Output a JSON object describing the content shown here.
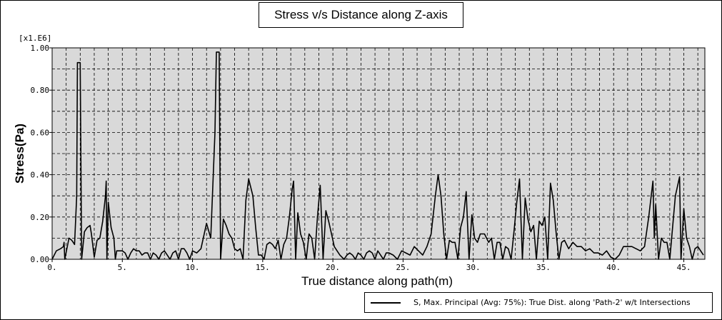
{
  "chart_data": {
    "type": "line",
    "title": "Stress v/s Distance along Z-axis",
    "xlabel": "True distance along path(m)",
    "ylabel": "Stress(Pa)",
    "yscale_label": "[x1.E6]",
    "xlim": [
      0,
      46.5
    ],
    "ylim": [
      0,
      1.0
    ],
    "x_ticks": [
      0,
      5,
      10,
      15,
      20,
      25,
      30,
      35,
      40,
      45
    ],
    "x_tick_labels": [
      "0.",
      "5.",
      "10.",
      "15.",
      "20.",
      "25.",
      "30.",
      "35.",
      "40.",
      "45."
    ],
    "y_ticks": [
      0,
      0.2,
      0.4,
      0.6,
      0.8,
      1.0
    ],
    "y_tick_labels": [
      "0.00",
      "0.20",
      "0.40",
      "0.60",
      "0.80",
      "1.00"
    ],
    "grid": true,
    "legend_position": "bottom-right",
    "background_color": "#d9d9d9",
    "series": [
      {
        "name": "S, Max. Principal (Avg: 75%): True Dist. along 'Path-2' w/t Intersections",
        "color": "#000000",
        "x": [
          0.0,
          0.3,
          0.6,
          0.8,
          0.85,
          0.9,
          1.2,
          1.4,
          1.5,
          1.6,
          1.75,
          1.8,
          1.9,
          2.0,
          2.1,
          2.3,
          2.5,
          2.7,
          2.8,
          3.0,
          3.2,
          3.4,
          3.6,
          3.8,
          3.85,
          3.9,
          4.0,
          4.2,
          4.4,
          4.5,
          4.6,
          5.0,
          5.2,
          5.4,
          5.6,
          5.8,
          6.0,
          6.2,
          6.4,
          6.6,
          6.8,
          7.0,
          7.2,
          7.4,
          7.6,
          7.8,
          8.0,
          8.2,
          8.4,
          8.6,
          8.8,
          9.0,
          9.2,
          9.4,
          9.6,
          9.8,
          10.0,
          10.3,
          10.6,
          11.0,
          11.3,
          11.6,
          11.7,
          11.8,
          11.9,
          12.0,
          12.2,
          12.4,
          12.6,
          12.8,
          13.0,
          13.2,
          13.4,
          13.6,
          13.8,
          14.0,
          14.3,
          14.5,
          14.7,
          14.9,
          15.1,
          15.3,
          15.5,
          15.7,
          15.9,
          16.1,
          16.3,
          16.5,
          16.7,
          16.9,
          17.1,
          17.2,
          17.35,
          17.5,
          17.7,
          17.9,
          18.1,
          18.3,
          18.5,
          18.7,
          18.9,
          19.1,
          19.3,
          19.5,
          19.7,
          19.9,
          20.1,
          20.3,
          20.5,
          20.8,
          21.0,
          21.2,
          21.4,
          21.6,
          21.8,
          22.0,
          22.2,
          22.4,
          22.6,
          22.8,
          23.0,
          23.2,
          23.4,
          23.6,
          23.8,
          24.0,
          24.3,
          24.6,
          24.9,
          25.2,
          25.5,
          25.8,
          26.1,
          26.4,
          26.7,
          27.0,
          27.3,
          27.5,
          27.7,
          27.9,
          28.1,
          28.3,
          28.5,
          28.7,
          28.9,
          29.1,
          29.3,
          29.5,
          29.7,
          29.9,
          30.1,
          30.3,
          30.5,
          30.8,
          31.1,
          31.3,
          31.5,
          31.7,
          31.9,
          32.1,
          32.3,
          32.5,
          32.7,
          32.9,
          33.1,
          33.3,
          33.5,
          33.7,
          33.9,
          34.1,
          34.3,
          34.5,
          34.7,
          34.9,
          35.1,
          35.3,
          35.5,
          35.7,
          35.9,
          36.1,
          36.3,
          36.5,
          36.8,
          37.1,
          37.4,
          37.7,
          38.0,
          38.3,
          38.6,
          38.9,
          39.2,
          39.5,
          39.8,
          40.1,
          40.4,
          40.7,
          41.0,
          41.3,
          41.6,
          41.9,
          42.2,
          42.5,
          42.8,
          42.9,
          43.0,
          43.2,
          43.4,
          43.6,
          43.8,
          44.0,
          44.2,
          44.4,
          44.7,
          44.8,
          45.0,
          45.2,
          45.4,
          45.6,
          45.8,
          46.0,
          46.2,
          46.4
        ],
        "values": [
          0.0,
          0.04,
          0.05,
          0.06,
          0.08,
          0.0,
          0.1,
          0.09,
          0.08,
          0.07,
          0.3,
          0.93,
          0.93,
          0.93,
          0.0,
          0.13,
          0.15,
          0.16,
          0.12,
          0.01,
          0.09,
          0.1,
          0.18,
          0.3,
          0.37,
          0.0,
          0.27,
          0.15,
          0.1,
          0.0,
          0.04,
          0.04,
          0.03,
          0.0,
          0.03,
          0.05,
          0.04,
          0.04,
          0.02,
          0.03,
          0.03,
          0.0,
          0.03,
          0.02,
          0.0,
          0.03,
          0.04,
          0.02,
          0.0,
          0.03,
          0.04,
          0.0,
          0.05,
          0.05,
          0.03,
          0.0,
          0.04,
          0.03,
          0.05,
          0.17,
          0.1,
          0.6,
          0.98,
          0.98,
          0.98,
          0.0,
          0.19,
          0.16,
          0.12,
          0.1,
          0.05,
          0.04,
          0.05,
          0.0,
          0.28,
          0.38,
          0.3,
          0.15,
          0.02,
          0.02,
          0.0,
          0.07,
          0.08,
          0.07,
          0.05,
          0.09,
          0.0,
          0.07,
          0.1,
          0.2,
          0.33,
          0.37,
          0.0,
          0.22,
          0.12,
          0.08,
          0.0,
          0.12,
          0.1,
          0.0,
          0.2,
          0.35,
          0.0,
          0.23,
          0.18,
          0.12,
          0.06,
          0.04,
          0.02,
          0.0,
          0.02,
          0.03,
          0.02,
          0.0,
          0.03,
          0.02,
          0.0,
          0.03,
          0.04,
          0.03,
          0.0,
          0.04,
          0.02,
          0.0,
          0.03,
          0.03,
          0.02,
          0.0,
          0.04,
          0.03,
          0.02,
          0.06,
          0.04,
          0.02,
          0.06,
          0.12,
          0.3,
          0.4,
          0.3,
          0.12,
          0.0,
          0.09,
          0.08,
          0.08,
          0.0,
          0.15,
          0.2,
          0.32,
          0.0,
          0.21,
          0.1,
          0.08,
          0.12,
          0.12,
          0.08,
          0.1,
          0.0,
          0.08,
          0.08,
          0.0,
          0.06,
          0.05,
          0.0,
          0.13,
          0.27,
          0.38,
          0.0,
          0.29,
          0.19,
          0.13,
          0.16,
          0.0,
          0.18,
          0.16,
          0.2,
          0.0,
          0.36,
          0.28,
          0.13,
          0.0,
          0.08,
          0.09,
          0.05,
          0.08,
          0.06,
          0.06,
          0.04,
          0.05,
          0.03,
          0.03,
          0.02,
          0.04,
          0.01,
          0.0,
          0.02,
          0.06,
          0.06,
          0.06,
          0.05,
          0.04,
          0.06,
          0.2,
          0.37,
          0.1,
          0.26,
          0.0,
          0.1,
          0.08,
          0.08,
          0.0,
          0.15,
          0.3,
          0.39,
          0.0,
          0.24,
          0.1,
          0.06,
          0.0,
          0.05,
          0.06,
          0.04,
          0.02
        ]
      }
    ]
  }
}
